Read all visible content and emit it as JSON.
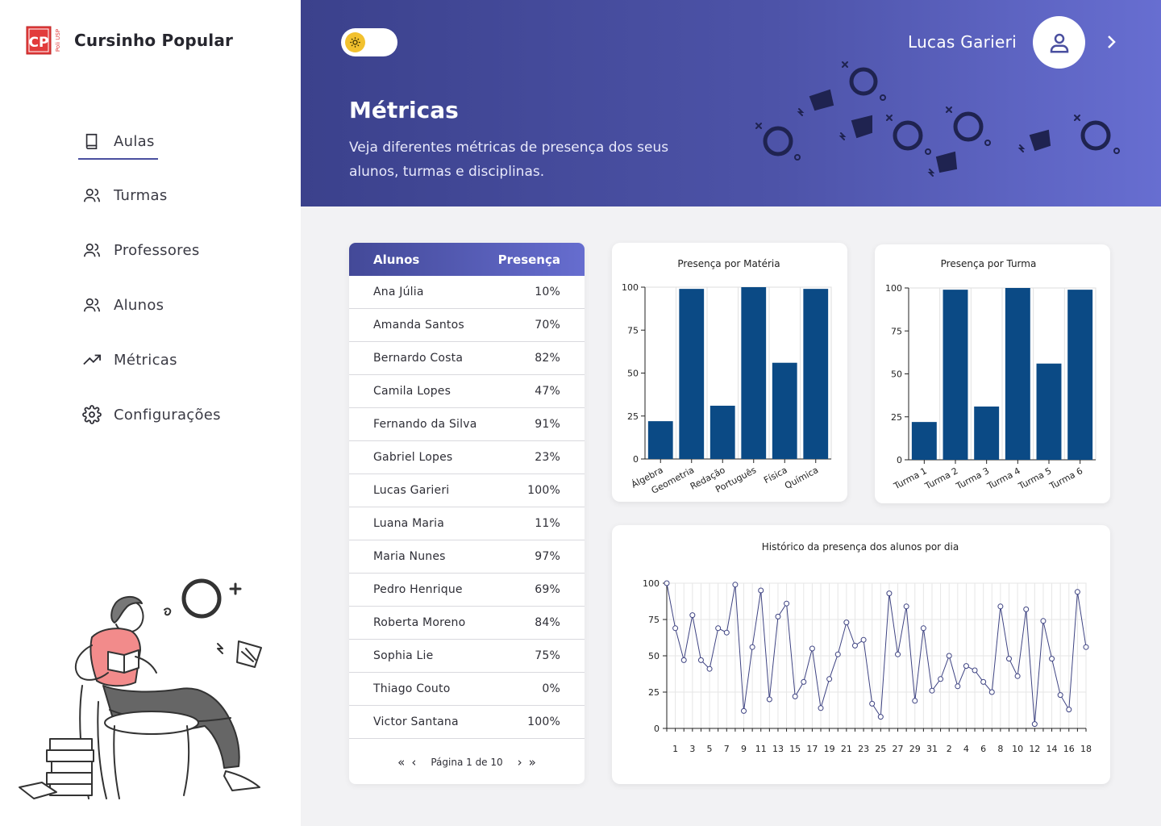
{
  "brand": {
    "name": "Cursinho Popular",
    "logo_text": "CP",
    "logo_sub": "Poli USP"
  },
  "sidebar": {
    "items": [
      {
        "label": "Aulas",
        "icon": "book-icon",
        "active": true
      },
      {
        "label": "Turmas",
        "icon": "users-icon",
        "active": false
      },
      {
        "label": "Professores",
        "icon": "users-icon",
        "active": false
      },
      {
        "label": "Alunos",
        "icon": "users-icon",
        "active": false
      },
      {
        "label": "Métricas",
        "icon": "trending-up-icon",
        "active": false
      },
      {
        "label": "Configurações",
        "icon": "gear-icon",
        "active": false
      }
    ]
  },
  "header": {
    "user_name": "Lucas Garieri",
    "title": "Métricas",
    "subtitle": "Veja diferentes métricas de presença dos seus alunos, turmas e disciplinas."
  },
  "colors": {
    "accent": "#4a4f9f",
    "bar": "#0b4a85",
    "line": "#3e4382",
    "toggle": "#f2c12e"
  },
  "table": {
    "headers": [
      "Alunos",
      "Presença"
    ],
    "rows": [
      [
        "Ana Júlia",
        "10%"
      ],
      [
        "Amanda Santos",
        "70%"
      ],
      [
        "Bernardo Costa",
        "82%"
      ],
      [
        "Camila Lopes",
        "47%"
      ],
      [
        "Fernando da Silva",
        "91%"
      ],
      [
        "Gabriel Lopes",
        "23%"
      ],
      [
        "Lucas Garieri",
        "100%"
      ],
      [
        "Luana Maria",
        "11%"
      ],
      [
        "Maria Nunes",
        "97%"
      ],
      [
        "Pedro Henrique",
        "69%"
      ],
      [
        "Roberta Moreno",
        "84%"
      ],
      [
        "Sophia Lie",
        "75%"
      ],
      [
        "Thiago Couto",
        "0%"
      ],
      [
        "Victor Santana",
        "100%"
      ]
    ],
    "pagination": "Página 1 de 10"
  },
  "chart_data": [
    {
      "type": "bar",
      "title": "Presença por Matéria",
      "categories": [
        "Álgebra",
        "Geometria",
        "Redação",
        "Português",
        "Física",
        "Química"
      ],
      "values": [
        22,
        99,
        31,
        100,
        56,
        99
      ],
      "ylim": [
        0,
        100
      ],
      "yticks": [
        0,
        25,
        50,
        75,
        100
      ],
      "grid": true
    },
    {
      "type": "bar",
      "title": "Presença por Turma",
      "categories": [
        "Turma 1",
        "Turma 2",
        "Turma 3",
        "Turma 4",
        "Turma 5",
        "Turma 6"
      ],
      "values": [
        22,
        99,
        31,
        100,
        56,
        99
      ],
      "ylim": [
        0,
        100
      ],
      "yticks": [
        0,
        25,
        50,
        75,
        100
      ],
      "grid": true
    },
    {
      "type": "line",
      "title": "Histórico da presença dos alunos por dia",
      "xtick_labels": [
        "1",
        "3",
        "5",
        "7",
        "9",
        "11",
        "13",
        "15",
        "17",
        "19",
        "21",
        "23",
        "25",
        "27",
        "29",
        "31",
        "2",
        "4",
        "6",
        "8",
        "10",
        "12",
        "14",
        "16",
        "18"
      ],
      "values": [
        100,
        69,
        47,
        78,
        47,
        41,
        69,
        66,
        99,
        12,
        56,
        95,
        20,
        77,
        86,
        22,
        32,
        55,
        14,
        34,
        51,
        73,
        57,
        61,
        17,
        8,
        93,
        51,
        84,
        19,
        69,
        26,
        34,
        50,
        29,
        43,
        40,
        32,
        25,
        84,
        48,
        36,
        82,
        3,
        74,
        48,
        23,
        13,
        94,
        56
      ],
      "ylim": [
        0,
        100
      ],
      "yticks": [
        0,
        25,
        50,
        75,
        100
      ],
      "grid": true
    }
  ]
}
